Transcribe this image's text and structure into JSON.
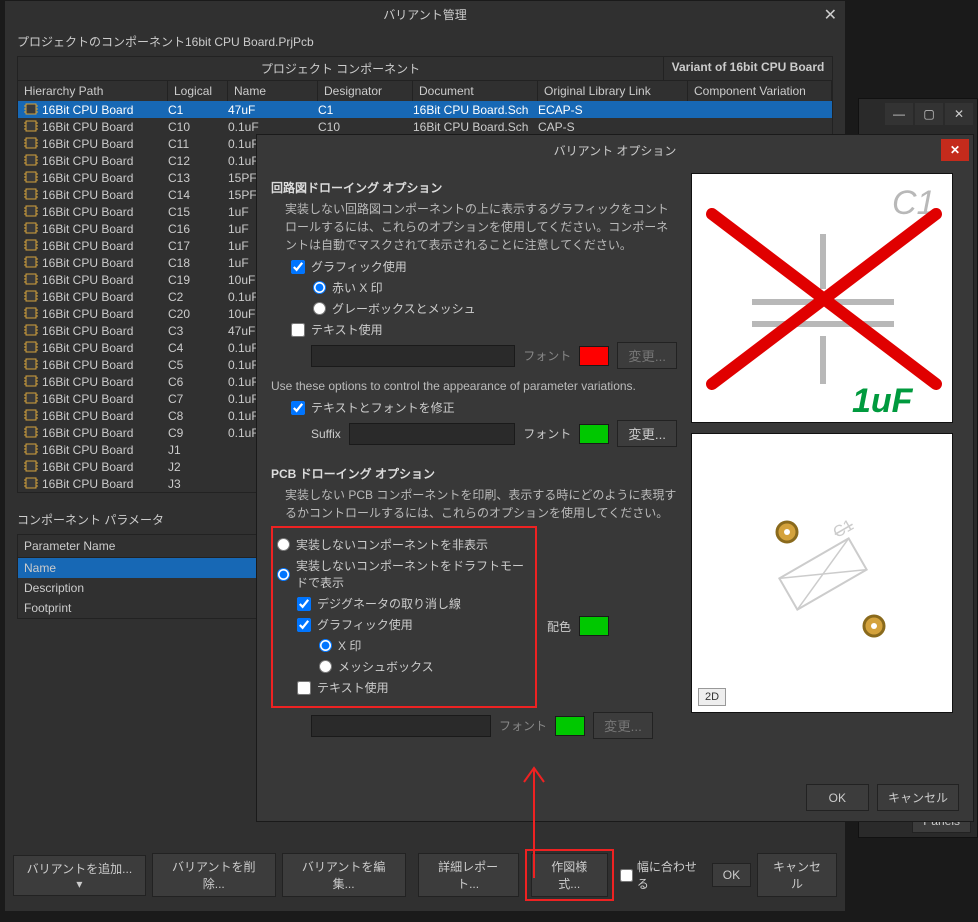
{
  "mainWindow": {
    "title": "バリアント管理",
    "subHeader": "プロジェクトのコンポーネント16bit CPU Board.PrjPcb",
    "tableGroupLabel": "プロジェクト コンポーネント",
    "variantOf": "Variant of 16bit CPU Board",
    "columns": {
      "hierarchy": "Hierarchy Path",
      "logical": "Logical",
      "name": "Name",
      "designator": "Designator",
      "document": "Document",
      "library": "Original Library Link",
      "variation": "Component Variation"
    },
    "rows": [
      {
        "hier": "16Bit CPU Board",
        "log": "C1",
        "name": "47uF",
        "des": "C1",
        "doc": "16Bit CPU Board.Sch",
        "lib": "ECAP-S",
        "sel": true
      },
      {
        "hier": "16Bit CPU Board",
        "log": "C10",
        "name": "0.1uF",
        "des": "C10",
        "doc": "16Bit CPU Board.Sch",
        "lib": "CAP-S"
      },
      {
        "hier": "16Bit CPU Board",
        "log": "C11",
        "name": "0.1uF"
      },
      {
        "hier": "16Bit CPU Board",
        "log": "C12",
        "name": "0.1uF"
      },
      {
        "hier": "16Bit CPU Board",
        "log": "C13",
        "name": "15PF"
      },
      {
        "hier": "16Bit CPU Board",
        "log": "C14",
        "name": "15PF"
      },
      {
        "hier": "16Bit CPU Board",
        "log": "C15",
        "name": "1uF"
      },
      {
        "hier": "16Bit CPU Board",
        "log": "C16",
        "name": "1uF"
      },
      {
        "hier": "16Bit CPU Board",
        "log": "C17",
        "name": "1uF"
      },
      {
        "hier": "16Bit CPU Board",
        "log": "C18",
        "name": "1uF"
      },
      {
        "hier": "16Bit CPU Board",
        "log": "C19",
        "name": "10uF"
      },
      {
        "hier": "16Bit CPU Board",
        "log": "C2",
        "name": "0.1uF"
      },
      {
        "hier": "16Bit CPU Board",
        "log": "C20",
        "name": "10uF"
      },
      {
        "hier": "16Bit CPU Board",
        "log": "C3",
        "name": "47uF"
      },
      {
        "hier": "16Bit CPU Board",
        "log": "C4",
        "name": "0.1uF"
      },
      {
        "hier": "16Bit CPU Board",
        "log": "C5",
        "name": "0.1uF"
      },
      {
        "hier": "16Bit CPU Board",
        "log": "C6",
        "name": "0.1uF"
      },
      {
        "hier": "16Bit CPU Board",
        "log": "C7",
        "name": "0.1uF"
      },
      {
        "hier": "16Bit CPU Board",
        "log": "C8",
        "name": "0.1uF"
      },
      {
        "hier": "16Bit CPU Board",
        "log": "C9",
        "name": "0.1uF"
      },
      {
        "hier": "16Bit CPU Board",
        "log": "J1",
        "name": ""
      },
      {
        "hier": "16Bit CPU Board",
        "log": "J2",
        "name": ""
      },
      {
        "hier": "16Bit CPU Board",
        "log": "J3",
        "name": ""
      }
    ],
    "paramsLabel": "コンポーネント パラメータ",
    "paramHeader": "Parameter Name",
    "paramRows": [
      "Name",
      "Description",
      "Footprint"
    ],
    "bottomButtons": {
      "addVariant": "バリアントを追加...",
      "deleteVariant": "バリアントを削除...",
      "editVariant": "バリアントを編集...",
      "detailReport": "詳細レポート...",
      "drawingStyle": "作図様式...",
      "fitToWidth": "幅に合わせる",
      "ok": "OK",
      "cancel": "キャンセル"
    }
  },
  "backWindow": {
    "panels": "Panels"
  },
  "optDialog": {
    "title": "バリアント オプション",
    "schSection": {
      "title": "回路図ドローイング オプション",
      "desc": "実装しない回路図コンポーネントの上に表示するグラフィックをコントロールするには、これらのオプションを使用してください。コンポーネントは自動でマスクされて表示されることに注意してください。",
      "useGraphic": "グラフィック使用",
      "redX": "赤い X 印",
      "greyBoxMesh": "グレーボックスとメッシュ",
      "useText": "テキスト使用",
      "fontLabel": "フォント",
      "changeBtn": "変更...",
      "paramDesc": "Use these options to control the appearance of parameter variations.",
      "fixTextFont": "テキストとフォントを修正",
      "suffixLabel": "Suffix"
    },
    "pcbSection": {
      "title": "PCB ドローイング オプション",
      "desc": "実装しない PCB コンポーネントを印刷、表示する時にどのように表現するかコントロールするには、これらのオプションを使用してください。",
      "hideNotFitted": "実装しないコンポーネントを非表示",
      "draftMode": "実装しないコンポーネントをドラフトモードで表示",
      "strikeDesignator": "デジグネータの取り消し線",
      "useGraphic": "グラフィック使用",
      "xMark": "X 印",
      "meshBox": "メッシュボックス",
      "useText": "テキスト使用",
      "colorLabel": "配色",
      "fontLabel": "フォント",
      "changeBtn": "変更..."
    },
    "preview": {
      "c1": "C1",
      "value": "1uF",
      "badge2d": "2D"
    },
    "ok": "OK",
    "cancel": "キャンセル",
    "colors": {
      "red": "#ff0000",
      "green": "#00c800",
      "xStroke": "#e00000",
      "c1Gray": "#b8b8b8",
      "valueGreen": "#009a3e",
      "padGold": "#d4a23c",
      "pcbOutline": "#ffffff",
      "pcbBg": "#ffffff"
    }
  }
}
